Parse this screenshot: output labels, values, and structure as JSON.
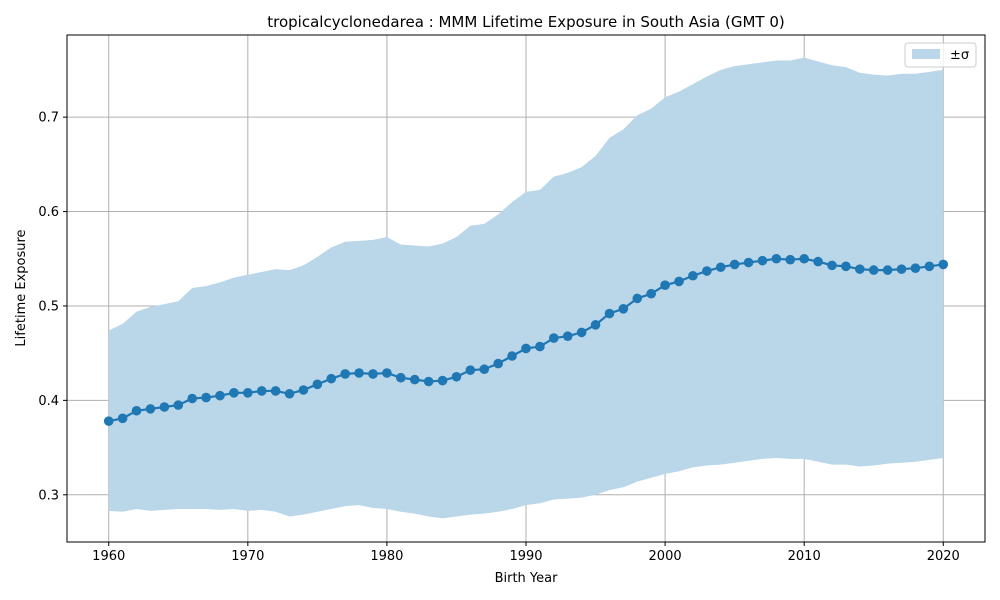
{
  "chart_data": {
    "type": "area",
    "title": "tropicalcyclonedarea : MMM Lifetime Exposure in South Asia (GMT 0)",
    "xlabel": "Birth Year",
    "ylabel": "Lifetime Exposure",
    "xlim": [
      1957,
      2023
    ],
    "ylim": [
      0.25,
      0.787
    ],
    "xticks": [
      "1960",
      "1970",
      "1980",
      "1990",
      "2000",
      "2010",
      "2020"
    ],
    "yticks": [
      "0.3",
      "0.4",
      "0.5",
      "0.6",
      "0.7"
    ],
    "grid": true,
    "legend_position": "top-right",
    "legend": [
      {
        "label": "±σ",
        "color": "#bad6e9"
      }
    ],
    "colors": {
      "line": "#1f77b4",
      "band": "#bad6e9",
      "grid": "#b0b0b0"
    },
    "x": [
      1960,
      1961,
      1962,
      1963,
      1964,
      1965,
      1966,
      1967,
      1968,
      1969,
      1970,
      1971,
      1972,
      1973,
      1974,
      1975,
      1976,
      1977,
      1978,
      1979,
      1980,
      1981,
      1982,
      1983,
      1984,
      1985,
      1986,
      1987,
      1988,
      1989,
      1990,
      1991,
      1992,
      1993,
      1994,
      1995,
      1996,
      1997,
      1998,
      1999,
      2000,
      2001,
      2002,
      2003,
      2004,
      2005,
      2006,
      2007,
      2008,
      2009,
      2010,
      2011,
      2012,
      2013,
      2014,
      2015,
      2016,
      2017,
      2018,
      2019,
      2020
    ],
    "series": [
      {
        "values": [
          0.378,
          0.381,
          0.389,
          0.391,
          0.393,
          0.395,
          0.402,
          0.403,
          0.405,
          0.408,
          0.408,
          0.41,
          0.41,
          0.407,
          0.411,
          0.417,
          0.423,
          0.428,
          0.429,
          0.428,
          0.429,
          0.424,
          0.422,
          0.42,
          0.421,
          0.425,
          0.432,
          0.433,
          0.439,
          0.447,
          0.455,
          0.457,
          0.466,
          0.468,
          0.472,
          0.48,
          0.492,
          0.497,
          0.508,
          0.513,
          0.522,
          0.526,
          0.532,
          0.537,
          0.541,
          0.544,
          0.546,
          0.548,
          0.55,
          0.549,
          0.55,
          0.547,
          0.543,
          0.542,
          0.539,
          0.538,
          0.538,
          0.539,
          0.54,
          0.542,
          0.544
        ],
        "upper": [
          0.474,
          0.481,
          0.494,
          0.499,
          0.502,
          0.505,
          0.519,
          0.521,
          0.525,
          0.53,
          0.533,
          0.536,
          0.539,
          0.538,
          0.543,
          0.552,
          0.562,
          0.568,
          0.569,
          0.57,
          0.573,
          0.565,
          0.564,
          0.563,
          0.566,
          0.573,
          0.585,
          0.587,
          0.597,
          0.61,
          0.621,
          0.623,
          0.637,
          0.641,
          0.647,
          0.659,
          0.678,
          0.687,
          0.702,
          0.709,
          0.721,
          0.727,
          0.735,
          0.743,
          0.75,
          0.754,
          0.756,
          0.758,
          0.76,
          0.76,
          0.763,
          0.759,
          0.755,
          0.753,
          0.747,
          0.745,
          0.744,
          0.746,
          0.746,
          0.748,
          0.75
        ],
        "lower": [
          0.283,
          0.282,
          0.285,
          0.283,
          0.284,
          0.285,
          0.285,
          0.285,
          0.284,
          0.285,
          0.283,
          0.284,
          0.282,
          0.277,
          0.279,
          0.282,
          0.285,
          0.288,
          0.289,
          0.286,
          0.285,
          0.282,
          0.28,
          0.277,
          0.275,
          0.277,
          0.279,
          0.28,
          0.282,
          0.285,
          0.289,
          0.291,
          0.295,
          0.296,
          0.297,
          0.3,
          0.305,
          0.308,
          0.314,
          0.318,
          0.322,
          0.325,
          0.329,
          0.331,
          0.332,
          0.334,
          0.336,
          0.338,
          0.339,
          0.338,
          0.338,
          0.335,
          0.332,
          0.332,
          0.33,
          0.331,
          0.333,
          0.334,
          0.335,
          0.337,
          0.339
        ]
      }
    ]
  }
}
